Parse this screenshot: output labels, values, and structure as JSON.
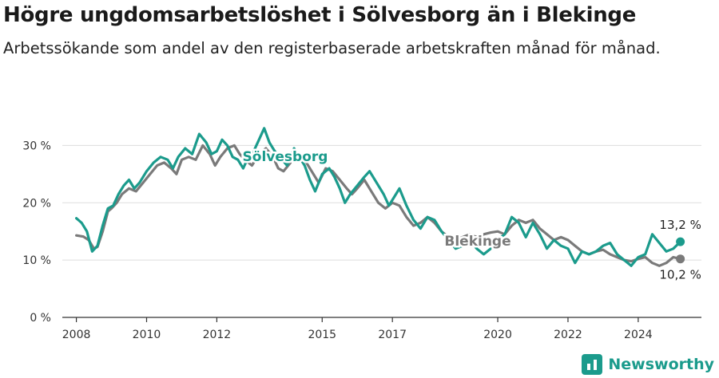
{
  "title": "Högre ungdomsarbetslöshet i Sölvesborg än i Blekinge",
  "subtitle": "Arbetssökande som andel av den registerbaserade arbetskraften månad för månad.",
  "brand": "Newsworthy",
  "colors": {
    "solvesborg": "#1b9b8c",
    "blekinge": "#7a7a7a",
    "grid": "#dddddd",
    "axis": "#333333"
  },
  "chart_data": {
    "type": "line",
    "title": "Högre ungdomsarbetslöshet i Sölvesborg än i Blekinge",
    "xlabel": "",
    "ylabel": "",
    "xlim": [
      2007.6,
      2025.8
    ],
    "ylim": [
      0,
      32
    ],
    "y_ticks": [
      0,
      10,
      20,
      30
    ],
    "y_tick_labels": [
      "0 %",
      "10 %",
      "20 %",
      "30 %"
    ],
    "x_ticks": [
      2008,
      2010,
      2012,
      2015,
      2017,
      2020,
      2022,
      2024
    ],
    "x_tick_labels": [
      "2008",
      "2010",
      "2012",
      "2015",
      "2017",
      "2020",
      "2022",
      "2024"
    ],
    "series": [
      {
        "name": "Blekinge",
        "label": "Blekinge",
        "end_label": "10,2 %",
        "points": [
          [
            2008.0,
            14.3
          ],
          [
            2008.2,
            14.1
          ],
          [
            2008.35,
            13.5
          ],
          [
            2008.5,
            12.0
          ],
          [
            2008.6,
            12.3
          ],
          [
            2008.75,
            15.0
          ],
          [
            2008.9,
            18.5
          ],
          [
            2009.0,
            19.0
          ],
          [
            2009.15,
            20.0
          ],
          [
            2009.3,
            21.5
          ],
          [
            2009.5,
            22.5
          ],
          [
            2009.7,
            22.0
          ],
          [
            2009.9,
            23.5
          ],
          [
            2010.1,
            25.0
          ],
          [
            2010.3,
            26.5
          ],
          [
            2010.5,
            27.0
          ],
          [
            2010.7,
            26.0
          ],
          [
            2010.85,
            25.0
          ],
          [
            2011.0,
            27.5
          ],
          [
            2011.2,
            28.0
          ],
          [
            2011.4,
            27.5
          ],
          [
            2011.6,
            30.0
          ],
          [
            2011.8,
            28.5
          ],
          [
            2011.95,
            26.5
          ],
          [
            2012.1,
            28.0
          ],
          [
            2012.3,
            29.5
          ],
          [
            2012.5,
            30.0
          ],
          [
            2012.65,
            28.5
          ],
          [
            2012.8,
            27.5
          ],
          [
            2013.0,
            26.5
          ],
          [
            2013.2,
            28.5
          ],
          [
            2013.4,
            29.5
          ],
          [
            2013.6,
            28.0
          ],
          [
            2013.75,
            26.0
          ],
          [
            2013.9,
            25.5
          ],
          [
            2014.1,
            27.0
          ],
          [
            2014.3,
            28.5
          ],
          [
            2014.5,
            27.5
          ],
          [
            2014.7,
            25.5
          ],
          [
            2014.9,
            23.5
          ],
          [
            2015.1,
            26.0
          ],
          [
            2015.3,
            25.5
          ],
          [
            2015.5,
            24.0
          ],
          [
            2015.7,
            22.5
          ],
          [
            2015.85,
            21.5
          ],
          [
            2016.0,
            22.5
          ],
          [
            2016.2,
            24.0
          ],
          [
            2016.4,
            22.0
          ],
          [
            2016.6,
            20.0
          ],
          [
            2016.8,
            19.0
          ],
          [
            2017.0,
            20.0
          ],
          [
            2017.2,
            19.5
          ],
          [
            2017.4,
            17.5
          ],
          [
            2017.6,
            16.0
          ],
          [
            2017.8,
            16.5
          ],
          [
            2018.0,
            17.5
          ],
          [
            2018.2,
            16.5
          ],
          [
            2018.4,
            15.0
          ],
          [
            2018.6,
            14.0
          ],
          [
            2018.8,
            13.5
          ],
          [
            2019.0,
            14.0
          ],
          [
            2019.2,
            14.5
          ],
          [
            2019.4,
            14.0
          ],
          [
            2019.6,
            14.5
          ],
          [
            2019.8,
            14.8
          ],
          [
            2020.0,
            15.0
          ],
          [
            2020.2,
            14.5
          ],
          [
            2020.4,
            16.0
          ],
          [
            2020.6,
            17.0
          ],
          [
            2020.8,
            16.5
          ],
          [
            2021.0,
            17.0
          ],
          [
            2021.2,
            15.5
          ],
          [
            2021.4,
            14.5
          ],
          [
            2021.6,
            13.5
          ],
          [
            2021.8,
            14.0
          ],
          [
            2022.0,
            13.5
          ],
          [
            2022.2,
            12.5
          ],
          [
            2022.4,
            11.5
          ],
          [
            2022.6,
            11.0
          ],
          [
            2022.8,
            11.5
          ],
          [
            2023.0,
            11.8
          ],
          [
            2023.2,
            11.0
          ],
          [
            2023.4,
            10.5
          ],
          [
            2023.6,
            10.0
          ],
          [
            2023.8,
            9.8
          ],
          [
            2024.0,
            10.2
          ],
          [
            2024.2,
            10.5
          ],
          [
            2024.4,
            9.5
          ],
          [
            2024.6,
            9.0
          ],
          [
            2024.8,
            9.5
          ],
          [
            2025.0,
            10.5
          ],
          [
            2025.2,
            10.2
          ]
        ]
      },
      {
        "name": "Sölvesborg",
        "label": "Sölvesborg",
        "end_label": "13,2 %",
        "points": [
          [
            2008.0,
            17.3
          ],
          [
            2008.15,
            16.5
          ],
          [
            2008.3,
            15.0
          ],
          [
            2008.45,
            11.5
          ],
          [
            2008.6,
            12.5
          ],
          [
            2008.75,
            16.0
          ],
          [
            2008.9,
            19.0
          ],
          [
            2009.05,
            19.5
          ],
          [
            2009.2,
            21.5
          ],
          [
            2009.35,
            23.0
          ],
          [
            2009.5,
            24.0
          ],
          [
            2009.65,
            22.5
          ],
          [
            2009.8,
            23.5
          ],
          [
            2010.0,
            25.5
          ],
          [
            2010.2,
            27.0
          ],
          [
            2010.4,
            28.0
          ],
          [
            2010.6,
            27.5
          ],
          [
            2010.75,
            26.0
          ],
          [
            2010.9,
            28.0
          ],
          [
            2011.1,
            29.5
          ],
          [
            2011.3,
            28.5
          ],
          [
            2011.5,
            32.0
          ],
          [
            2011.7,
            30.5
          ],
          [
            2011.85,
            28.5
          ],
          [
            2012.0,
            29.0
          ],
          [
            2012.15,
            31.0
          ],
          [
            2012.3,
            30.0
          ],
          [
            2012.45,
            28.0
          ],
          [
            2012.6,
            27.5
          ],
          [
            2012.75,
            26.0
          ],
          [
            2012.9,
            28.0
          ],
          [
            2013.05,
            29.0
          ],
          [
            2013.2,
            31.0
          ],
          [
            2013.35,
            33.0
          ],
          [
            2013.5,
            30.5
          ],
          [
            2013.65,
            29.0
          ],
          [
            2013.8,
            28.0
          ],
          [
            2014.0,
            26.5
          ],
          [
            2014.2,
            29.5
          ],
          [
            2014.35,
            28.0
          ],
          [
            2014.5,
            26.5
          ],
          [
            2014.65,
            24.0
          ],
          [
            2014.8,
            22.0
          ],
          [
            2015.0,
            25.0
          ],
          [
            2015.2,
            26.0
          ],
          [
            2015.35,
            24.5
          ],
          [
            2015.5,
            22.5
          ],
          [
            2015.65,
            20.0
          ],
          [
            2015.8,
            21.5
          ],
          [
            2016.0,
            23.0
          ],
          [
            2016.2,
            24.5
          ],
          [
            2016.35,
            25.5
          ],
          [
            2016.55,
            23.5
          ],
          [
            2016.75,
            21.5
          ],
          [
            2016.9,
            19.5
          ],
          [
            2017.05,
            21.0
          ],
          [
            2017.2,
            22.5
          ],
          [
            2017.4,
            19.5
          ],
          [
            2017.6,
            17.0
          ],
          [
            2017.8,
            15.5
          ],
          [
            2018.0,
            17.5
          ],
          [
            2018.2,
            17.0
          ],
          [
            2018.4,
            15.0
          ],
          [
            2018.6,
            13.5
          ],
          [
            2018.8,
            12.0
          ],
          [
            2019.0,
            12.5
          ],
          [
            2019.2,
            13.5
          ],
          [
            2019.4,
            12.0
          ],
          [
            2019.6,
            11.0
          ],
          [
            2019.8,
            12.0
          ],
          [
            2020.0,
            13.5
          ],
          [
            2020.2,
            14.5
          ],
          [
            2020.4,
            17.5
          ],
          [
            2020.6,
            16.5
          ],
          [
            2020.8,
            14.0
          ],
          [
            2021.0,
            16.5
          ],
          [
            2021.2,
            14.5
          ],
          [
            2021.4,
            12.0
          ],
          [
            2021.6,
            13.5
          ],
          [
            2021.8,
            12.5
          ],
          [
            2022.0,
            12.0
          ],
          [
            2022.2,
            9.5
          ],
          [
            2022.4,
            11.5
          ],
          [
            2022.6,
            11.0
          ],
          [
            2022.8,
            11.5
          ],
          [
            2023.0,
            12.5
          ],
          [
            2023.2,
            13.0
          ],
          [
            2023.4,
            11.0
          ],
          [
            2023.6,
            10.0
          ],
          [
            2023.8,
            9.0
          ],
          [
            2024.0,
            10.5
          ],
          [
            2024.2,
            11.0
          ],
          [
            2024.4,
            14.5
          ],
          [
            2024.6,
            13.0
          ],
          [
            2024.8,
            11.5
          ],
          [
            2025.0,
            12.0
          ],
          [
            2025.2,
            13.2
          ]
        ]
      }
    ]
  }
}
